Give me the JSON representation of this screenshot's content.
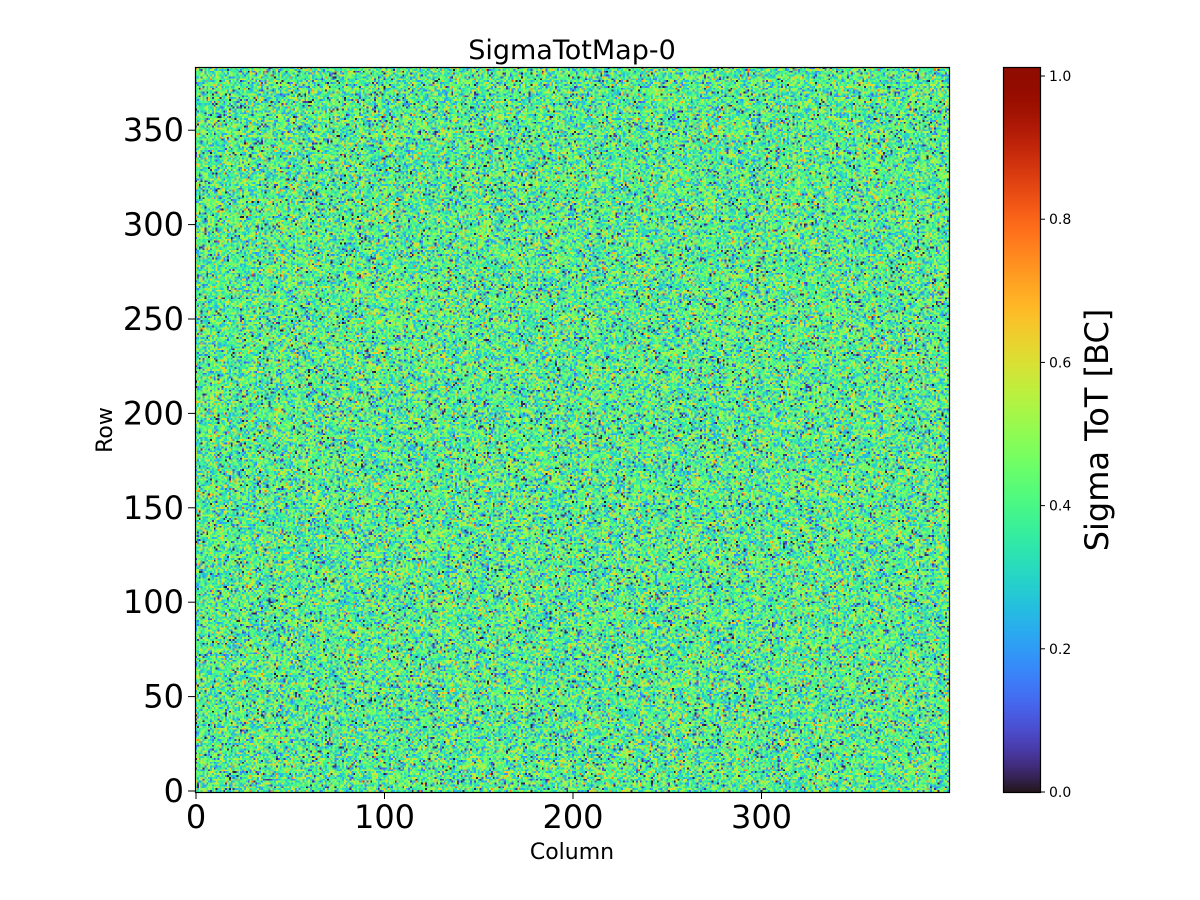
{
  "chart_data": {
    "type": "heatmap",
    "title": "SigmaTotMap-0",
    "xlabel": "Column",
    "ylabel": "Row",
    "colorbar_label": "Sigma ToT [BC]",
    "colormap": "turbo",
    "n_columns": 400,
    "n_rows": 384,
    "xlim": [
      0,
      400
    ],
    "ylim": [
      0,
      384
    ],
    "clim": [
      0.0,
      1.0126
    ],
    "x_ticks": [
      0,
      100,
      200,
      300
    ],
    "x_tick_labels": [
      "0",
      "100",
      "200",
      "300"
    ],
    "y_ticks": [
      0,
      50,
      100,
      150,
      200,
      250,
      300,
      350
    ],
    "y_tick_labels": [
      "0",
      "50",
      "100",
      "150",
      "200",
      "250",
      "300",
      "350"
    ],
    "colorbar_ticks": [
      0.0,
      0.2,
      0.4,
      0.6,
      0.8,
      1.0
    ],
    "colorbar_tick_labels": [
      "0.0",
      "0.2",
      "0.4",
      "0.6",
      "0.8",
      "1.0"
    ],
    "value_distribution": {
      "mean": 0.4,
      "std": 0.13,
      "min": 0.0,
      "max": 1.0
    }
  }
}
